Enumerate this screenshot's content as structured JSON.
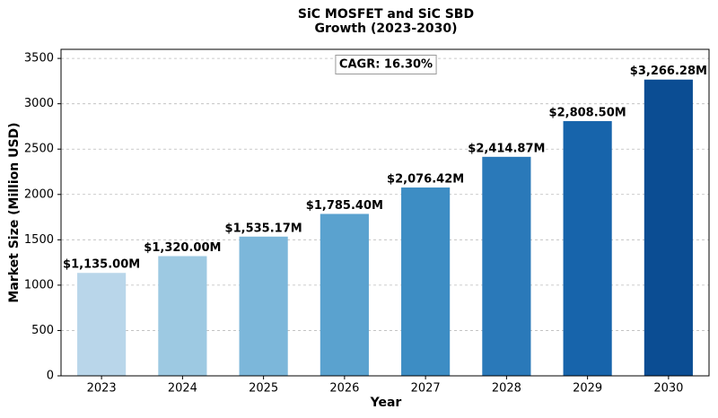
{
  "chart_data": {
    "type": "bar",
    "title": "SiC MOSFET and SiC SBD\nGrowth (2023-2030)",
    "x_label": "Year",
    "y_label": "Market Size (Million USD)",
    "annotation": "CAGR: 16.30%",
    "categories": [
      "2023",
      "2024",
      "2025",
      "2026",
      "2027",
      "2028",
      "2029",
      "2030"
    ],
    "values": [
      1135.0,
      1320.0,
      1535.17,
      1785.4,
      2076.42,
      2414.87,
      2808.5,
      3266.28
    ],
    "value_labels": [
      "$1,135.00M",
      "$1,320.00M",
      "$1,535.17M",
      "$1,785.40M",
      "$2,076.42M",
      "$2,414.87M",
      "$2,808.50M",
      "$3,266.28M"
    ],
    "colors": [
      "#b9d6ea",
      "#9dc9e2",
      "#7cb7da",
      "#5aa2cf",
      "#3d8dc4",
      "#2a79b9",
      "#1764ab",
      "#0b4d93"
    ],
    "ylim": [
      0,
      3600
    ],
    "yticks": [
      0,
      500,
      1000,
      1500,
      2000,
      2500,
      3000,
      3500
    ],
    "grid": true
  }
}
